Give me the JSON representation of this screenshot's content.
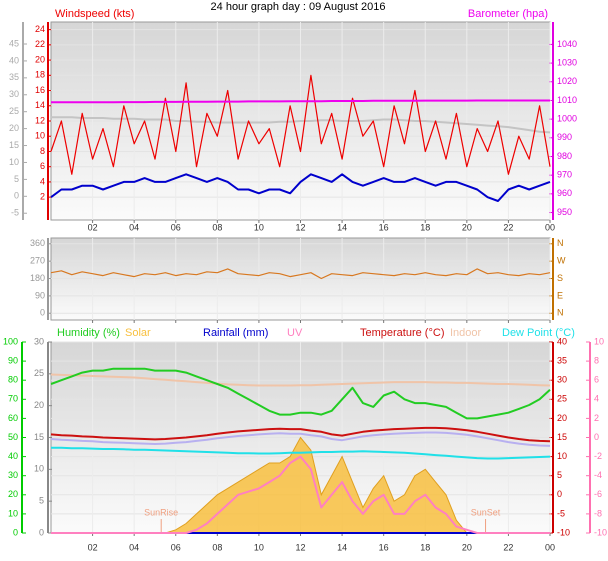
{
  "chart_data": [
    {
      "type": "line",
      "title": "24 hour graph day : 09 August 2016",
      "x": [
        0,
        0.5,
        1,
        1.5,
        2,
        2.5,
        3,
        3.5,
        4,
        4.5,
        5,
        5.5,
        6,
        6.5,
        7,
        7.5,
        8,
        8.5,
        9,
        9.5,
        10,
        10.5,
        11,
        11.5,
        12,
        12.5,
        13,
        13.5,
        14,
        14.5,
        15,
        15.5,
        16,
        16.5,
        17,
        17.5,
        18,
        18.5,
        19,
        19.5,
        20,
        20.5,
        21,
        21.5,
        22,
        22.5,
        23,
        23.5,
        24
      ],
      "xlim": [
        0,
        24
      ],
      "xticks": [
        {
          "value": 2,
          "label": "02"
        },
        {
          "value": 4,
          "label": "04"
        },
        {
          "value": 6,
          "label": "06"
        },
        {
          "value": 8,
          "label": "08"
        },
        10,
        12,
        14,
        16,
        18,
        20,
        22,
        {
          "value": 24,
          "label": "00"
        }
      ],
      "ylim": [
        -1,
        25
      ],
      "yticks": [
        2,
        4,
        6,
        8,
        10,
        12,
        14,
        16,
        18,
        20,
        22,
        24
      ],
      "y2lim": [
        946,
        1052
      ],
      "y2ticks": [
        950,
        960,
        970,
        980,
        990,
        1000,
        1010,
        1020,
        1030,
        1040
      ],
      "y3lim": [
        -7,
        51.5
      ],
      "y3ticks": [
        -5,
        0,
        5,
        10,
        15,
        20,
        25,
        30,
        35,
        40,
        45
      ],
      "axis_colors": {
        "y": "#e00000",
        "y2": "#e000e0",
        "y3": "#aaaaaa"
      },
      "grid": true,
      "series": [
        {
          "color": "#c4c4c4",
          "values": [
            12.5,
            12.5,
            12.5,
            12.4,
            12.4,
            12.4,
            12.3,
            12.3,
            12.3,
            12.2,
            12.2,
            12.2,
            12,
            12,
            11.9,
            11.9,
            11.8,
            11.8,
            11.8,
            11.8,
            11.8,
            11.8,
            11.9,
            11.9,
            12,
            12,
            12.1,
            12.1,
            12,
            12,
            12,
            12.1,
            12.2,
            12.2,
            12.1,
            12,
            12,
            11.9,
            11.8,
            11.7,
            11.6,
            11.5,
            11.4,
            11.3,
            11.2,
            11,
            10.8,
            10.6,
            10.5
          ]
        },
        {
          "name": "Windspeed (kts)",
          "color": "#ee0000",
          "values": [
            8,
            12,
            5,
            13,
            7,
            11,
            6,
            14,
            9,
            12,
            7,
            15,
            8,
            17,
            6,
            13,
            10,
            16,
            7,
            12,
            9,
            11,
            6,
            14,
            8,
            18,
            9,
            13,
            7,
            15,
            10,
            12,
            6,
            14,
            9,
            16,
            8,
            12,
            7,
            13,
            6,
            11,
            8,
            12,
            5,
            10,
            7,
            14,
            6
          ]
        },
        {
          "color": "#0000cc",
          "values": [
            2,
            3,
            3,
            3.5,
            3.5,
            3,
            3.5,
            4,
            4,
            4.5,
            4,
            4,
            4.5,
            5,
            4.5,
            4,
            4.5,
            4,
            3,
            3,
            2.5,
            3,
            3,
            2.5,
            4,
            5,
            4.5,
            4,
            5,
            4,
            3.5,
            4,
            4.5,
            4,
            4,
            4.5,
            4,
            3.5,
            4,
            4,
            3.5,
            3,
            2,
            1.5,
            3,
            3.5,
            3,
            3.5,
            4
          ]
        },
        {
          "name": "Barometer (hpa)",
          "color": "#ee00ee",
          "axis": "y2",
          "values": [
            1009,
            1009,
            1009,
            1009,
            1009,
            1009,
            1009,
            1009.1,
            1009.1,
            1009.1,
            1009.2,
            1009.2,
            1009.2,
            1009.3,
            1009.3,
            1009.3,
            1009.4,
            1009.4,
            1009.4,
            1009.5,
            1009.5,
            1009.5,
            1009.5,
            1009.6,
            1009.6,
            1009.6,
            1009.6,
            1009.7,
            1009.7,
            1009.7,
            1009.7,
            1009.8,
            1009.8,
            1009.8,
            1009.8,
            1009.8,
            1009.9,
            1009.9,
            1009.9,
            1009.9,
            1009.9,
            1010,
            1010,
            1010,
            1010,
            1010,
            1010,
            1010,
            1010
          ]
        }
      ]
    },
    {
      "type": "line",
      "x": [
        0,
        0.5,
        1,
        1.5,
        2,
        2.5,
        3,
        3.5,
        4,
        4.5,
        5,
        5.5,
        6,
        6.5,
        7,
        7.5,
        8,
        8.5,
        9,
        9.5,
        10,
        10.5,
        11,
        11.5,
        12,
        12.5,
        13,
        13.5,
        14,
        14.5,
        15,
        15.5,
        16,
        16.5,
        17,
        17.5,
        18,
        18.5,
        19,
        19.5,
        20,
        20.5,
        21,
        21.5,
        22,
        22.5,
        23,
        23.5,
        24
      ],
      "xlim": [
        0,
        24
      ],
      "xticks": [
        {
          "value": 2,
          "label": "02"
        },
        {
          "value": 4,
          "label": "04"
        },
        {
          "value": 6,
          "label": "06"
        },
        {
          "value": 8,
          "label": "08"
        },
        10,
        12,
        14,
        16,
        18,
        20,
        22,
        {
          "value": 24,
          "label": "00"
        }
      ],
      "ylim": [
        -35,
        390
      ],
      "yticks": [
        0,
        90,
        180,
        270,
        360
      ],
      "y2lim": [
        -35,
        390
      ],
      "y2ticks": [
        {
          "value": 0,
          "label": "N"
        },
        {
          "value": 90,
          "label": "E"
        },
        {
          "value": 180,
          "label": "S"
        },
        {
          "value": 270,
          "label": "W"
        },
        {
          "value": 360,
          "label": "N"
        }
      ],
      "axis_colors": {
        "y": "#999999",
        "y2": "#c07000"
      },
      "grid": true,
      "series": [
        {
          "color": "#d87820",
          "values": [
            210,
            220,
            200,
            215,
            205,
            195,
            210,
            200,
            190,
            205,
            200,
            210,
            195,
            205,
            200,
            215,
            210,
            230,
            205,
            200,
            195,
            210,
            205,
            190,
            200,
            210,
            180,
            205,
            200,
            195,
            210,
            205,
            200,
            195,
            205,
            200,
            210,
            200,
            195,
            205,
            200,
            230,
            205,
            210,
            200,
            195,
            205,
            200,
            210
          ]
        }
      ]
    },
    {
      "type": "line",
      "x": [
        0,
        0.5,
        1,
        1.5,
        2,
        2.5,
        3,
        3.5,
        4,
        4.5,
        5,
        5.5,
        6,
        6.5,
        7,
        7.5,
        8,
        8.5,
        9,
        9.5,
        10,
        10.5,
        11,
        11.5,
        12,
        12.5,
        13,
        13.5,
        14,
        14.5,
        15,
        15.5,
        16,
        16.5,
        17,
        17.5,
        18,
        18.5,
        19,
        19.5,
        20,
        20.5,
        21,
        21.5,
        22,
        22.5,
        23,
        23.5,
        24
      ],
      "xlim": [
        0,
        24
      ],
      "xticks": [
        {
          "value": 2,
          "label": "02"
        },
        {
          "value": 4,
          "label": "04"
        },
        {
          "value": 6,
          "label": "06"
        },
        {
          "value": 8,
          "label": "08"
        },
        10,
        12,
        14,
        16,
        18,
        20,
        22,
        {
          "value": 24,
          "label": "00"
        }
      ],
      "ylim": [
        0,
        100
      ],
      "yticks": [
        0,
        10,
        20,
        30,
        40,
        50,
        60,
        70,
        80,
        90,
        100
      ],
      "y2lim": [
        -10,
        40
      ],
      "y2ticks": [
        -10,
        -5,
        0,
        5,
        10,
        15,
        20,
        25,
        30,
        35,
        40
      ],
      "y3lim": [
        0,
        30
      ],
      "y3ticks": [
        0,
        5,
        10,
        15,
        20,
        25,
        30
      ],
      "y4lim": [
        -10,
        10
      ],
      "y4ticks": [
        -10,
        -8,
        -6,
        -4,
        -2,
        0,
        2,
        4,
        6,
        8,
        10
      ],
      "axis_colors": {
        "y": "#00cc00",
        "y2": "#cc0000",
        "y3": "#888888",
        "y4": "#ff70b0"
      },
      "grid": true,
      "annotations": [
        {
          "text": "SunRise",
          "x": 5.3
        },
        {
          "text": "SunSet",
          "x": 20.9
        }
      ],
      "series": [
        {
          "name": "Solar",
          "color": "#f8c040",
          "type": "area",
          "axis": "y3",
          "values": [
            0,
            0,
            0,
            0,
            0,
            0,
            0,
            0,
            0,
            0,
            0,
            0,
            0.5,
            1.5,
            3,
            4.5,
            6,
            7,
            8,
            9,
            10,
            11,
            11,
            12,
            15,
            13,
            6,
            9,
            12,
            8,
            4,
            7,
            9,
            5,
            6,
            9,
            10,
            8,
            6,
            2,
            0,
            0,
            0,
            0,
            0,
            0,
            0,
            0,
            0
          ]
        },
        {
          "name": "Rainfall (mm)",
          "color": "#0000cc",
          "axis": "y3",
          "values": [
            0,
            0,
            0,
            0,
            0,
            0,
            0,
            0,
            0,
            0,
            0,
            0,
            0,
            0,
            0,
            0,
            0,
            0,
            0,
            0,
            0,
            0,
            0,
            0,
            0,
            0,
            0,
            0,
            0,
            0,
            0,
            0,
            0,
            0,
            0,
            0,
            0,
            0,
            0,
            0,
            0,
            0,
            0,
            0,
            0,
            0,
            0,
            0,
            0
          ]
        },
        {
          "name": "Indoor",
          "color": "#f0c4a8",
          "axis": "y2",
          "values": [
            31.5,
            31.4,
            31.3,
            31.2,
            31.1,
            31,
            30.9,
            30.8,
            30.7,
            30.5,
            30.3,
            30.1,
            29.9,
            29.7,
            29.5,
            29.3,
            29.1,
            28.9,
            28.8,
            28.7,
            28.6,
            28.6,
            28.6,
            28.6,
            28.7,
            28.7,
            28.8,
            28.9,
            29,
            29.1,
            29.2,
            29.3,
            29.4,
            29.5,
            29.5,
            29.5,
            29.5,
            29.4,
            29.4,
            29.3,
            29.3,
            29.2,
            29.1,
            29,
            29,
            28.9,
            28.8,
            28.7,
            28.6
          ]
        },
        {
          "name": "Dew Point (°C)",
          "color": "#20e0e8",
          "axis": "y2",
          "values": [
            12.3,
            12.3,
            12.2,
            12.2,
            12.1,
            12,
            12,
            11.9,
            11.8,
            11.8,
            11.7,
            11.6,
            11.5,
            11.4,
            11.3,
            11.2,
            11.1,
            11,
            10.9,
            10.9,
            10.8,
            10.8,
            10.9,
            11,
            11,
            11.1,
            11.2,
            11.2,
            11.3,
            11.3,
            11.4,
            11.3,
            11.2,
            11.1,
            11,
            10.8,
            10.6,
            10.4,
            10.2,
            10,
            9.8,
            9.6,
            9.5,
            9.5,
            9.6,
            9.7,
            9.8,
            9.9,
            10
          ]
        },
        {
          "color": "#b8b0f0",
          "axis": "y2",
          "values": [
            14.6,
            14.4,
            14.3,
            14.1,
            14,
            13.8,
            13.7,
            13.6,
            13.5,
            13.4,
            13.3,
            13.4,
            13.6,
            13.8,
            14.1,
            14.4,
            14.8,
            15.1,
            15.4,
            15.6,
            15.8,
            16,
            16.1,
            16,
            16,
            15.6,
            15.3,
            14.6,
            14.3,
            14.8,
            15.3,
            15.6,
            15.8,
            16,
            16.1,
            16.2,
            16.3,
            16.3,
            16.2,
            16,
            15.7,
            15.3,
            14.8,
            14.3,
            13.8,
            13.4,
            13.1,
            12.9,
            12.8
          ]
        },
        {
          "name": "Temperature (°C)",
          "color": "#cc1010",
          "axis": "y2",
          "values": [
            15.8,
            15.6,
            15.5,
            15.3,
            15.2,
            15,
            14.9,
            14.8,
            14.7,
            14.6,
            14.5,
            14.6,
            14.8,
            15,
            15.3,
            15.6,
            16,
            16.3,
            16.6,
            16.8,
            17,
            17.2,
            17.3,
            17.2,
            17.2,
            16.8,
            16.5,
            15.8,
            15.5,
            16,
            16.5,
            16.8,
            17,
            17.2,
            17.3,
            17.4,
            17.5,
            17.5,
            17.4,
            17.2,
            16.9,
            16.5,
            16,
            15.5,
            15,
            14.6,
            14.3,
            14.1,
            14
          ]
        },
        {
          "name": "Humidity (%)",
          "color": "#22cc22",
          "values": [
            78,
            80,
            82,
            84,
            85,
            85,
            86,
            86,
            86,
            86,
            85,
            85,
            85,
            84,
            82,
            80,
            78,
            76,
            73,
            70,
            67,
            64,
            62,
            62,
            63,
            63,
            62,
            64,
            70,
            76,
            68,
            66,
            72,
            74,
            70,
            68,
            68,
            67,
            66,
            63,
            60,
            60,
            61,
            62,
            63,
            65,
            67,
            70,
            75
          ]
        },
        {
          "name": "UV",
          "color": "#ff80c0",
          "axis": "y3",
          "values": [
            0,
            0,
            0,
            0,
            0,
            0,
            0,
            0,
            0,
            0,
            0,
            0,
            0,
            0,
            0.5,
            1.5,
            3,
            4.5,
            6,
            6.5,
            7,
            8,
            9,
            11,
            12,
            10,
            4,
            6,
            8,
            5,
            3,
            5,
            6,
            3,
            3,
            5,
            6,
            4,
            3,
            1,
            0.5,
            0,
            0,
            0,
            0,
            0,
            0,
            0,
            0
          ]
        }
      ]
    }
  ]
}
